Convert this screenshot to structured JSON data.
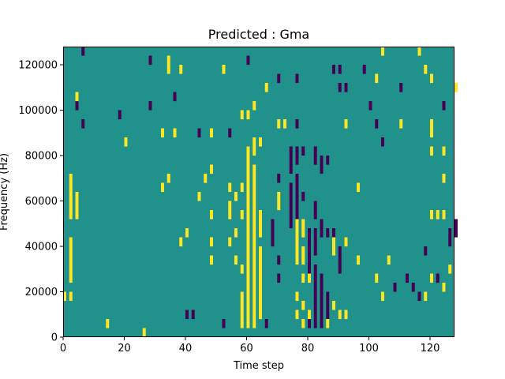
{
  "chart_data": {
    "type": "heatmap",
    "title": "Predicted : Gma",
    "xlabel": "Time step",
    "ylabel": "Frequency (Hz)",
    "xlim": [
      0,
      128
    ],
    "ylim": [
      0,
      128000
    ],
    "x_ticks": [
      0,
      20,
      40,
      60,
      80,
      100,
      120
    ],
    "y_ticks": [
      0,
      20000,
      40000,
      60000,
      80000,
      100000,
      120000
    ],
    "grid": false,
    "colormap": "viridis",
    "colors": {
      "low": "#440154",
      "mid": "#21918c",
      "high": "#fde725",
      "background": "#21918c"
    },
    "cell_height_hz": 4000,
    "cells_low": [
      [
        6,
        124000
      ],
      [
        28,
        120000
      ],
      [
        60,
        120000
      ],
      [
        88,
        116000
      ],
      [
        90,
        116000
      ],
      [
        98,
        116000
      ],
      [
        70,
        112000
      ],
      [
        76,
        112000
      ],
      [
        90,
        108000
      ],
      [
        92,
        108000
      ],
      [
        110,
        108000
      ],
      [
        36,
        104000
      ],
      [
        4,
        100000
      ],
      [
        28,
        100000
      ],
      [
        100,
        100000
      ],
      [
        124,
        100000
      ],
      [
        18,
        96000
      ],
      [
        6,
        92000
      ],
      [
        76,
        92000
      ],
      [
        102,
        92000
      ],
      [
        44,
        88000
      ],
      [
        54,
        88000
      ],
      [
        104,
        84000
      ],
      [
        74,
        80000
      ],
      [
        76,
        80000
      ],
      [
        78,
        80000
      ],
      [
        82,
        80000
      ],
      [
        74,
        76000
      ],
      [
        76,
        76000
      ],
      [
        82,
        76000
      ],
      [
        84,
        76000
      ],
      [
        86,
        76000
      ],
      [
        74,
        72000
      ],
      [
        84,
        72000
      ],
      [
        70,
        68000
      ],
      [
        76,
        68000
      ],
      [
        74,
        64000
      ],
      [
        76,
        64000
      ],
      [
        74,
        60000
      ],
      [
        76,
        60000
      ],
      [
        78,
        60000
      ],
      [
        74,
        56000
      ],
      [
        76,
        56000
      ],
      [
        82,
        56000
      ],
      [
        74,
        52000
      ],
      [
        76,
        52000
      ],
      [
        82,
        52000
      ],
      [
        68,
        48000
      ],
      [
        74,
        48000
      ],
      [
        84,
        48000
      ],
      [
        128,
        48000
      ],
      [
        68,
        44000
      ],
      [
        80,
        44000
      ],
      [
        82,
        44000
      ],
      [
        84,
        44000
      ],
      [
        86,
        44000
      ],
      [
        88,
        44000
      ],
      [
        126,
        44000
      ],
      [
        128,
        44000
      ],
      [
        68,
        40000
      ],
      [
        80,
        40000
      ],
      [
        82,
        40000
      ],
      [
        126,
        40000
      ],
      [
        80,
        36000
      ],
      [
        82,
        36000
      ],
      [
        90,
        36000
      ],
      [
        118,
        36000
      ],
      [
        70,
        32000
      ],
      [
        80,
        32000
      ],
      [
        90,
        32000
      ],
      [
        80,
        28000
      ],
      [
        82,
        28000
      ],
      [
        90,
        28000
      ],
      [
        70,
        24000
      ],
      [
        82,
        24000
      ],
      [
        84,
        24000
      ],
      [
        112,
        24000
      ],
      [
        122,
        24000
      ],
      [
        82,
        20000
      ],
      [
        84,
        20000
      ],
      [
        108,
        20000
      ],
      [
        114,
        20000
      ],
      [
        82,
        16000
      ],
      [
        84,
        16000
      ],
      [
        86,
        16000
      ],
      [
        116,
        16000
      ],
      [
        82,
        12000
      ],
      [
        84,
        12000
      ],
      [
        86,
        12000
      ],
      [
        40,
        8000
      ],
      [
        42,
        8000
      ],
      [
        82,
        8000
      ],
      [
        84,
        8000
      ],
      [
        86,
        8000
      ],
      [
        52,
        4000
      ],
      [
        66,
        4000
      ],
      [
        80,
        4000
      ],
      [
        82,
        4000
      ],
      [
        84,
        4000
      ]
    ],
    "cells_high": [
      [
        104,
        124000
      ],
      [
        116,
        124000
      ],
      [
        34,
        120000
      ],
      [
        34,
        116000
      ],
      [
        38,
        116000
      ],
      [
        52,
        116000
      ],
      [
        118,
        116000
      ],
      [
        102,
        112000
      ],
      [
        120,
        112000
      ],
      [
        66,
        108000
      ],
      [
        128,
        108000
      ],
      [
        4,
        104000
      ],
      [
        62,
        100000
      ],
      [
        58,
        96000
      ],
      [
        60,
        96000
      ],
      [
        70,
        92000
      ],
      [
        72,
        92000
      ],
      [
        92,
        92000
      ],
      [
        110,
        92000
      ],
      [
        120,
        92000
      ],
      [
        32,
        88000
      ],
      [
        36,
        88000
      ],
      [
        48,
        88000
      ],
      [
        120,
        88000
      ],
      [
        20,
        84000
      ],
      [
        62,
        84000
      ],
      [
        64,
        84000
      ],
      [
        60,
        80000
      ],
      [
        62,
        80000
      ],
      [
        120,
        80000
      ],
      [
        124,
        80000
      ],
      [
        60,
        76000
      ],
      [
        48,
        72000
      ],
      [
        60,
        72000
      ],
      [
        62,
        72000
      ],
      [
        2,
        68000
      ],
      [
        34,
        68000
      ],
      [
        46,
        68000
      ],
      [
        60,
        68000
      ],
      [
        62,
        68000
      ],
      [
        124,
        68000
      ],
      [
        2,
        64000
      ],
      [
        32,
        64000
      ],
      [
        54,
        64000
      ],
      [
        58,
        64000
      ],
      [
        60,
        64000
      ],
      [
        62,
        64000
      ],
      [
        96,
        64000
      ],
      [
        2,
        60000
      ],
      [
        4,
        60000
      ],
      [
        44,
        60000
      ],
      [
        56,
        60000
      ],
      [
        60,
        60000
      ],
      [
        62,
        60000
      ],
      [
        70,
        60000
      ],
      [
        2,
        56000
      ],
      [
        4,
        56000
      ],
      [
        54,
        56000
      ],
      [
        60,
        56000
      ],
      [
        62,
        56000
      ],
      [
        70,
        56000
      ],
      [
        2,
        52000
      ],
      [
        4,
        52000
      ],
      [
        48,
        52000
      ],
      [
        54,
        52000
      ],
      [
        58,
        52000
      ],
      [
        60,
        52000
      ],
      [
        62,
        52000
      ],
      [
        64,
        52000
      ],
      [
        120,
        52000
      ],
      [
        122,
        52000
      ],
      [
        124,
        52000
      ],
      [
        60,
        48000
      ],
      [
        62,
        48000
      ],
      [
        64,
        48000
      ],
      [
        76,
        48000
      ],
      [
        78,
        48000
      ],
      [
        40,
        44000
      ],
      [
        56,
        44000
      ],
      [
        60,
        44000
      ],
      [
        62,
        44000
      ],
      [
        64,
        44000
      ],
      [
        76,
        44000
      ],
      [
        78,
        44000
      ],
      [
        2,
        40000
      ],
      [
        38,
        40000
      ],
      [
        48,
        40000
      ],
      [
        54,
        40000
      ],
      [
        60,
        40000
      ],
      [
        62,
        40000
      ],
      [
        76,
        40000
      ],
      [
        88,
        40000
      ],
      [
        92,
        40000
      ],
      [
        2,
        36000
      ],
      [
        60,
        36000
      ],
      [
        62,
        36000
      ],
      [
        64,
        36000
      ],
      [
        76,
        36000
      ],
      [
        78,
        36000
      ],
      [
        88,
        36000
      ],
      [
        2,
        32000
      ],
      [
        48,
        32000
      ],
      [
        56,
        32000
      ],
      [
        60,
        32000
      ],
      [
        62,
        32000
      ],
      [
        64,
        32000
      ],
      [
        76,
        32000
      ],
      [
        78,
        32000
      ],
      [
        96,
        32000
      ],
      [
        106,
        32000
      ],
      [
        2,
        28000
      ],
      [
        58,
        28000
      ],
      [
        60,
        28000
      ],
      [
        62,
        28000
      ],
      [
        64,
        28000
      ],
      [
        126,
        28000
      ],
      [
        2,
        24000
      ],
      [
        60,
        24000
      ],
      [
        62,
        24000
      ],
      [
        64,
        24000
      ],
      [
        78,
        24000
      ],
      [
        80,
        24000
      ],
      [
        102,
        24000
      ],
      [
        120,
        24000
      ],
      [
        60,
        20000
      ],
      [
        62,
        20000
      ],
      [
        64,
        20000
      ],
      [
        124,
        20000
      ],
      [
        0,
        16000
      ],
      [
        2,
        16000
      ],
      [
        58,
        16000
      ],
      [
        60,
        16000
      ],
      [
        62,
        16000
      ],
      [
        64,
        16000
      ],
      [
        76,
        16000
      ],
      [
        104,
        16000
      ],
      [
        118,
        16000
      ],
      [
        58,
        12000
      ],
      [
        60,
        12000
      ],
      [
        62,
        12000
      ],
      [
        64,
        12000
      ],
      [
        78,
        12000
      ],
      [
        88,
        12000
      ],
      [
        58,
        8000
      ],
      [
        60,
        8000
      ],
      [
        62,
        8000
      ],
      [
        64,
        8000
      ],
      [
        76,
        8000
      ],
      [
        80,
        8000
      ],
      [
        90,
        8000
      ],
      [
        92,
        8000
      ],
      [
        14,
        4000
      ],
      [
        58,
        4000
      ],
      [
        60,
        4000
      ],
      [
        62,
        4000
      ],
      [
        78,
        4000
      ],
      [
        86,
        4000
      ],
      [
        26,
        0
      ]
    ]
  }
}
